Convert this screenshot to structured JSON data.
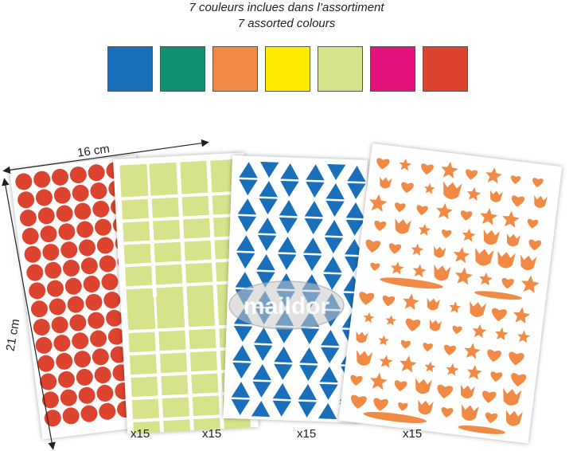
{
  "heading": {
    "line1": "7 couleurs inclues dans l’assortiment",
    "line2": "7 assorted colours"
  },
  "swatches": [
    {
      "name": "blue",
      "color": "#1a6fba"
    },
    {
      "name": "green",
      "color": "#109173"
    },
    {
      "name": "orange",
      "color": "#f18a45"
    },
    {
      "name": "yellow",
      "color": "#ffec00"
    },
    {
      "name": "lime",
      "color": "#d6e38a"
    },
    {
      "name": "pink",
      "color": "#e4127d"
    },
    {
      "name": "red",
      "color": "#dd4430"
    }
  ],
  "sheets": [
    {
      "name": "circles",
      "color": "#dd4430",
      "quantity": "x15"
    },
    {
      "name": "squares",
      "color": "#d6e38a",
      "quantity": "x15"
    },
    {
      "name": "triangles",
      "color": "#1a6fba",
      "quantity": "x15"
    },
    {
      "name": "shapes",
      "color": "#f18a45",
      "quantity": "x15"
    }
  ],
  "dimensions": {
    "width": "16 cm",
    "height": "21 cm"
  },
  "watermark": "maildor"
}
